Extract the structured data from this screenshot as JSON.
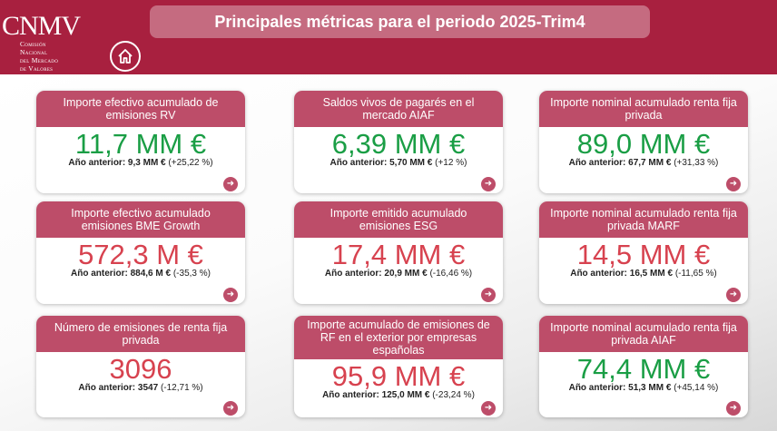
{
  "header": {
    "logo_text": "CNMV",
    "logo_subtitle": [
      "Comisión",
      "Nacional",
      "del Mercado",
      "de Valores"
    ],
    "title": "Principales métricas para el periodo 2025-Trim4",
    "home_icon": "home-icon"
  },
  "colors": {
    "header": "#a8203f",
    "card_header": "#bd4d69",
    "positive": "#1a9e45",
    "negative": "#d7424f"
  },
  "cards": [
    {
      "title": "Importe efectivo acumulado de emisiones RV",
      "value": "11,7 MM €",
      "trend": "positive",
      "prev_label": "Año anterior: 9,3 MM €",
      "change": "(+25,22 %)"
    },
    {
      "title": "Saldos vivos de pagarés en el mercado AIAF",
      "value": "6,39 MM €",
      "trend": "positive",
      "prev_label": "Año anterior: 5,70 MM €",
      "change": "(+12 %)"
    },
    {
      "title": "Importe nominal acumulado renta fija privada",
      "value": "89,0 MM €",
      "trend": "positive",
      "prev_label": "Año anterior: 67,7 MM €",
      "change": "(+31,33 %)"
    },
    {
      "title": "Importe efectivo acumulado emisiones BME Growth",
      "value": "572,3 M €",
      "trend": "negative",
      "prev_label": "Año anterior: 884,6 M €",
      "change": "(-35,3 %)"
    },
    {
      "title": "Importe emitido acumulado emisiones ESG",
      "value": "17,4 MM €",
      "trend": "negative",
      "prev_label": "Año anterior: 20,9 MM €",
      "change": "(-16,46 %)"
    },
    {
      "title": "Importe nominal acumulado renta fija privada MARF",
      "value": "14,5 MM €",
      "trend": "negative",
      "prev_label": "Año anterior: 16,5 MM €",
      "change": "(-11,65 %)"
    },
    {
      "title": "Número de emisiones de renta fija privada",
      "value": "3096",
      "trend": "negative",
      "prev_label": "Año anterior: 3547",
      "change": "(-12,71 %)"
    },
    {
      "title": "Importe acumulado de emisiones de RF en el exterior por empresas españolas",
      "value": "95,9 MM €",
      "trend": "negative",
      "prev_label": "Año anterior: 125,0 MM €",
      "change": "(-23,24 %)"
    },
    {
      "title": "Importe nominal acumulado renta fija privada AIAF",
      "value": "74,4 MM €",
      "trend": "positive",
      "prev_label": "Año anterior: 51,3 MM €",
      "change": "(+45,14 %)"
    }
  ]
}
